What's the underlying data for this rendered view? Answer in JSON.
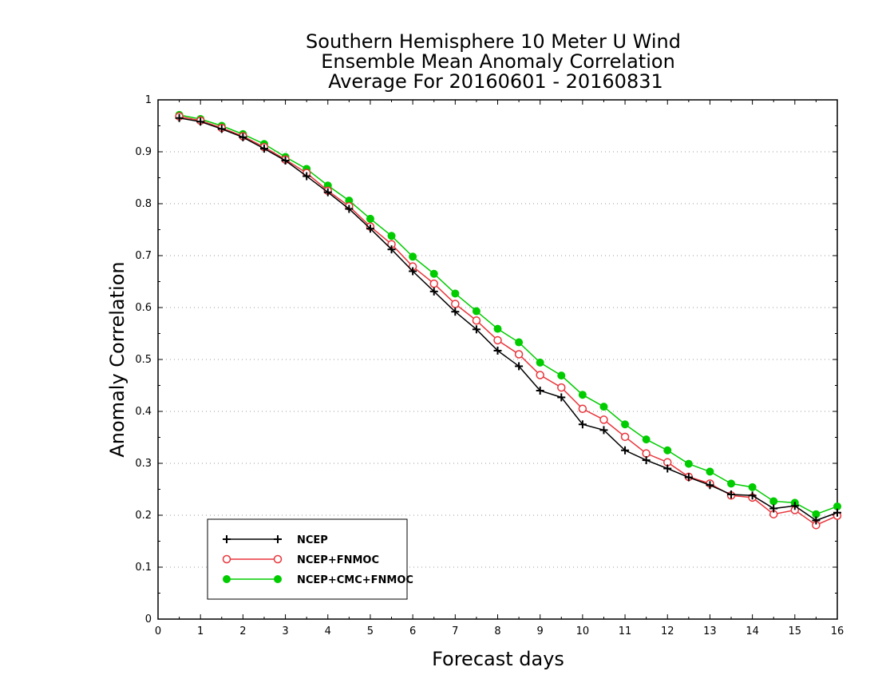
{
  "chart_data": {
    "type": "line",
    "title": [
      "Southern Hemisphere 10 Meter U Wind",
      "Ensemble Mean Anomaly Correlation",
      "Average For 20160601 - 20160831"
    ],
    "xlabel": "Forecast days",
    "ylabel": "Anomaly Correlation",
    "xlim": [
      0,
      16
    ],
    "ylim": [
      0,
      1
    ],
    "xticks": [
      "0",
      "1",
      "2",
      "3",
      "4",
      "5",
      "6",
      "7",
      "8",
      "9",
      "10",
      "11",
      "12",
      "13",
      "14",
      "15",
      "16"
    ],
    "yticks": [
      "0",
      "0.1",
      "0.2",
      "0.3",
      "0.4",
      "0.5",
      "0.6",
      "0.7",
      "0.8",
      "0.9",
      "1"
    ],
    "grid": "horizontal dotted",
    "legend_position": "bottom-left",
    "x": [
      0.5,
      1,
      1.5,
      2,
      2.5,
      3,
      3.5,
      4,
      4.5,
      5,
      5.5,
      6,
      6.5,
      7,
      7.5,
      8,
      8.5,
      9,
      9.5,
      10,
      10.5,
      11,
      11.5,
      12,
      12.5,
      13,
      13.5,
      14,
      14.5,
      15,
      15.5,
      16
    ],
    "series": [
      {
        "name": "NCEP",
        "color": "#000000",
        "marker": "plus",
        "values": [
          0.965,
          0.958,
          0.944,
          0.928,
          0.906,
          0.883,
          0.853,
          0.822,
          0.79,
          0.752,
          0.712,
          0.67,
          0.631,
          0.592,
          0.558,
          0.517,
          0.487,
          0.44,
          0.427,
          0.375,
          0.364,
          0.325,
          0.306,
          0.29,
          0.273,
          0.258,
          0.24,
          0.238,
          0.213,
          0.218,
          0.19,
          0.205
        ]
      },
      {
        "name": "NCEP+FNMOC",
        "color": "#e8353b",
        "marker": "open-circle",
        "values": [
          0.968,
          0.96,
          0.946,
          0.93,
          0.909,
          0.885,
          0.859,
          0.825,
          0.795,
          0.756,
          0.722,
          0.679,
          0.646,
          0.607,
          0.575,
          0.537,
          0.51,
          0.47,
          0.446,
          0.405,
          0.384,
          0.351,
          0.319,
          0.302,
          0.274,
          0.261,
          0.238,
          0.234,
          0.202,
          0.21,
          0.181,
          0.199
        ]
      },
      {
        "name": "NCEP+CMC+FNMOC",
        "color": "#00cc00",
        "marker": "filled-circle",
        "values": [
          0.971,
          0.963,
          0.95,
          0.934,
          0.915,
          0.89,
          0.867,
          0.835,
          0.806,
          0.771,
          0.738,
          0.698,
          0.665,
          0.627,
          0.593,
          0.559,
          0.533,
          0.494,
          0.469,
          0.432,
          0.409,
          0.375,
          0.346,
          0.325,
          0.299,
          0.284,
          0.261,
          0.254,
          0.227,
          0.224,
          0.202,
          0.217
        ]
      }
    ]
  }
}
